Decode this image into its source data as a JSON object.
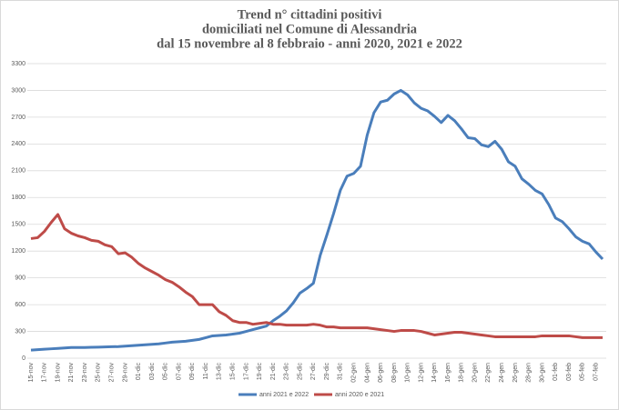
{
  "chart_data": {
    "type": "line",
    "title": [
      "Trend n° cittadini positivi",
      "domiciliati nel Comune di Alessandria",
      "dal 15 novembre al 8 febbraio - anni 2020, 2021 e 2022"
    ],
    "categories": [
      "15-nov",
      null,
      "17-nov",
      null,
      "19-nov",
      null,
      "21-nov",
      null,
      "23-nov",
      null,
      "25-nov",
      null,
      "27-nov",
      null,
      "29-nov",
      null,
      "01-dic",
      null,
      "03-dic",
      null,
      "05-dic",
      null,
      "07-dic",
      null,
      "09-dic",
      null,
      "11-dic",
      null,
      "13-dic",
      null,
      "15-dic",
      null,
      "17-dic",
      null,
      "19-dic",
      null,
      "21-dic",
      null,
      "23-dic",
      null,
      "25-dic",
      null,
      "27-dic",
      null,
      "29-dic",
      null,
      "31-dic",
      null,
      "02-gen",
      null,
      "04-gen",
      null,
      "06-gen",
      null,
      "08-gen",
      null,
      "10-gen",
      null,
      "12-gen",
      null,
      "14-gen",
      null,
      "16-gen",
      null,
      "18-gen",
      null,
      "20-gen",
      null,
      "22-gen",
      null,
      "24-gen",
      null,
      "26-gen",
      null,
      "28-gen",
      null,
      "30-gen",
      null,
      "01-feb",
      null,
      "03-feb",
      null,
      "05-feb",
      null,
      "07-feb",
      null
    ],
    "series": [
      {
        "name": "anni 2021 e 2022",
        "color": "#4a7ebb",
        "values": [
          90,
          95,
          100,
          105,
          110,
          115,
          120,
          120,
          120,
          122,
          124,
          126,
          128,
          130,
          135,
          140,
          145,
          150,
          155,
          160,
          170,
          180,
          185,
          190,
          200,
          210,
          230,
          250,
          255,
          260,
          270,
          280,
          300,
          320,
          340,
          360,
          420,
          470,
          530,
          620,
          730,
          780,
          840,
          1150,
          1380,
          1620,
          1880,
          2040,
          2070,
          2150,
          2500,
          2750,
          2870,
          2890,
          2960,
          3000,
          2950,
          2860,
          2800,
          2770,
          2710,
          2640,
          2720,
          2660,
          2570,
          2470,
          2460,
          2390,
          2370,
          2430,
          2340,
          2200,
          2150,
          2010,
          1950,
          1880,
          1840,
          1720,
          1570,
          1530,
          1450,
          1360,
          1310,
          1280,
          1190,
          1110
        ]
      },
      {
        "name": "anni 2020 e 2021",
        "color": "#be4b48",
        "values": [
          1340,
          1350,
          1420,
          1520,
          1610,
          1450,
          1400,
          1370,
          1350,
          1320,
          1310,
          1270,
          1250,
          1170,
          1180,
          1130,
          1060,
          1010,
          970,
          930,
          880,
          850,
          800,
          740,
          690,
          600,
          600,
          600,
          520,
          480,
          420,
          400,
          400,
          380,
          390,
          400,
          380,
          380,
          370,
          370,
          370,
          370,
          380,
          370,
          350,
          350,
          340,
          340,
          340,
          340,
          340,
          330,
          320,
          310,
          300,
          310,
          310,
          310,
          300,
          280,
          260,
          270,
          280,
          290,
          290,
          280,
          270,
          260,
          250,
          240,
          240,
          240,
          240,
          240,
          240,
          240,
          250,
          250,
          250,
          250,
          250,
          240,
          230,
          230,
          230,
          230
        ]
      }
    ],
    "ylim": [
      0,
      3300
    ],
    "yticks": [
      0,
      300,
      600,
      900,
      1200,
      1500,
      1800,
      2100,
      2400,
      2700,
      3000,
      3300
    ],
    "grid": true,
    "legend": "bottom"
  }
}
